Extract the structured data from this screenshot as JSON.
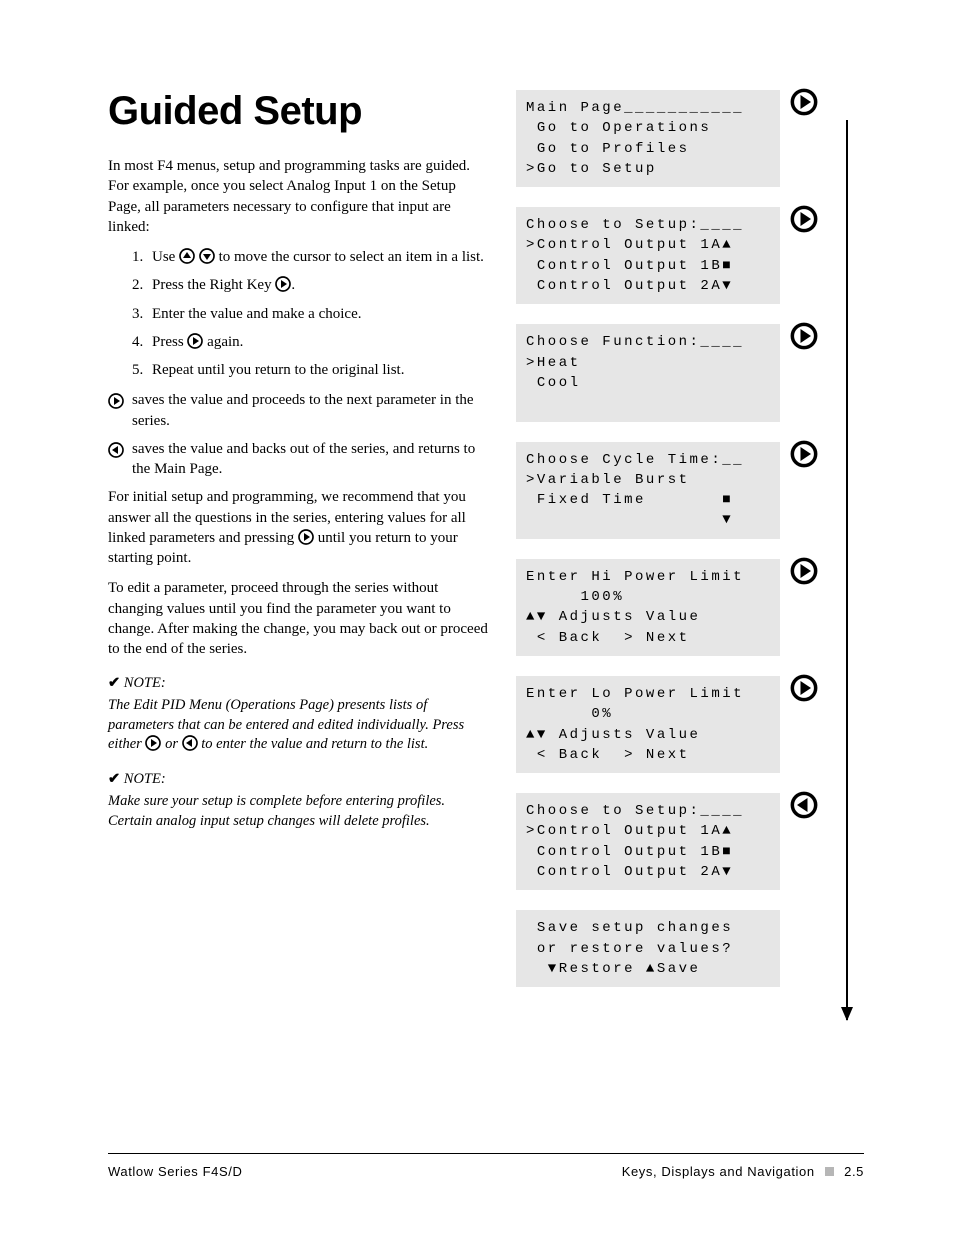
{
  "title": "Guided Setup",
  "intro": "In most F4 menus, setup and programming tasks are guided. For example, once you select Analog Input 1 on the Setup Page, all parameters necessary to configure that input are linked:",
  "steps": [
    "Use       to move the cursor to select an item in a list.",
    "Press the Right Key  .",
    "Enter the value and make a choice.",
    "Press    again.",
    "Repeat until you return to the original list."
  ],
  "step1_a": "Use ",
  "step1_b": " to move the cursor to select an item in a list.",
  "step2_a": "Press the Right Key ",
  "step2_b": ".",
  "step3": "Enter the value and make a choice.",
  "step4_a": "Press ",
  "step4_b": " again.",
  "step5": "Repeat until you return to the original list.",
  "bullets": [
    "saves the value and proceeds to the next parameter in the series.",
    "saves the value and backs out of the series, and returns to the Main Page."
  ],
  "para2_a": "For initial setup and programming, we recommend that you answer all the questions in the series, entering values for all linked parameters and pressing ",
  "para2_b": " until you return to your starting point.",
  "para3": "To edit a parameter, proceed through the series without changing values until you find the parameter you want to change. After making the change, you may back out or proceed to the end of the series.",
  "noteLabel": "NOTE:",
  "note1_a": "The Edit PID Menu (Operations Page) presents lists of parameters that can be entered and edited individually. Press either ",
  "note1_b": " or ",
  "note1_c": " to enter the value and return to the list.",
  "note2": "Make sure your setup is complete before entering profiles. Certain analog input setup changes will delete profiles.",
  "screens": [
    {
      "dir": "right",
      "lines": [
        "Main Page___________",
        " Go to Operations",
        " Go to Profiles",
        ">Go to Setup"
      ]
    },
    {
      "dir": "right",
      "lines": [
        "Choose to Setup:____",
        ">Control Output 1A▲",
        " Control Output 1B■",
        " Control Output 2A▼"
      ]
    },
    {
      "dir": "right",
      "lines": [
        "Choose Function:____",
        ">Heat",
        " Cool",
        " "
      ]
    },
    {
      "dir": "right",
      "lines": [
        "Choose Cycle Time:__",
        ">Variable Burst",
        " Fixed Time       ■",
        "                  ▼"
      ]
    },
    {
      "dir": "right",
      "lines": [
        "Enter Hi Power Limit",
        "     100%",
        "▲▼ Adjusts Value",
        " < Back  > Next"
      ]
    },
    {
      "dir": "right",
      "lines": [
        "Enter Lo Power Limit",
        "      0%",
        "▲▼ Adjusts Value",
        " < Back  > Next"
      ]
    },
    {
      "dir": "left",
      "lines": [
        "Choose to Setup:____",
        ">Control Output 1A▲",
        " Control Output 1B■",
        " Control Output 2A▼"
      ]
    },
    {
      "dir": "none",
      "lines": [
        " Save setup changes",
        " or restore values?",
        "  ▼Restore ▲Save"
      ]
    }
  ],
  "footer": {
    "left": "Watlow Series F4S/D",
    "rightA": "Keys, Displays and Navigation",
    "rightB": "2.5"
  },
  "colors": {
    "screen_bg": "#e6e6e6",
    "text": "#000000",
    "footer_sq": "#b6b6b6"
  }
}
